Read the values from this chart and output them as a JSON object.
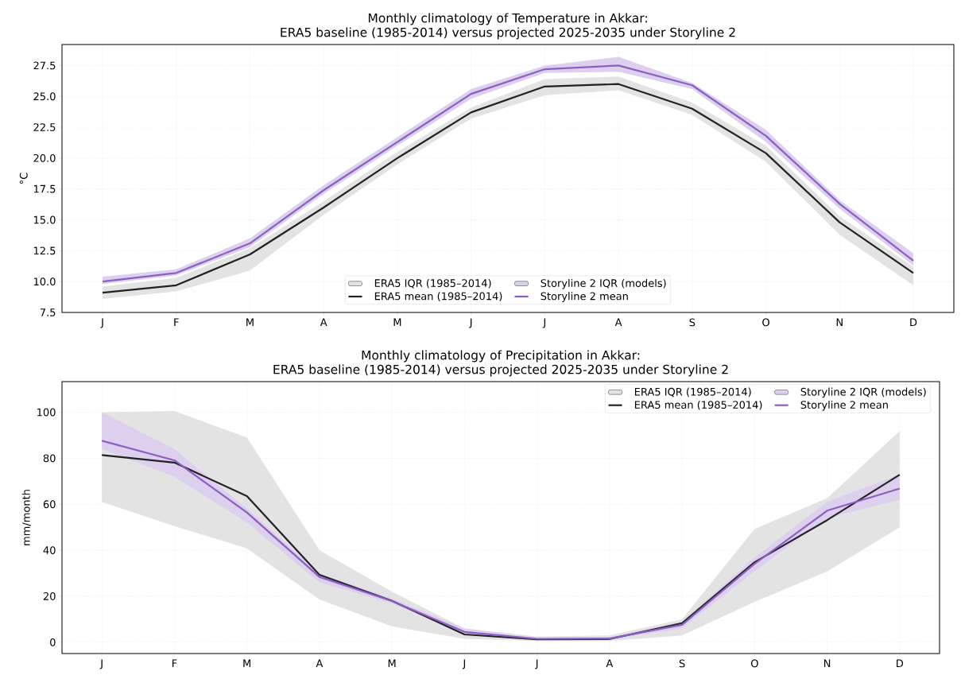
{
  "chart_data": [
    {
      "type": "line",
      "title": "Monthly climatology of Temperature in Akkar:",
      "subtitle": "ERA5 baseline (1985-2014) versus projected 2025-2035 under Storyline 2",
      "ylabel": "°C",
      "categories": [
        "J",
        "F",
        "M",
        "A",
        "M",
        "J",
        "J",
        "A",
        "S",
        "O",
        "N",
        "D"
      ],
      "ylim": [
        7.5,
        29.2
      ],
      "yticks": [
        {
          "value": 7.5,
          "label": "7.5"
        },
        {
          "value": 10,
          "label": "10.0"
        },
        {
          "value": 12.5,
          "label": "12.5"
        },
        {
          "value": 15,
          "label": "15.0"
        },
        {
          "value": 17.5,
          "label": "17.5"
        },
        {
          "value": 20,
          "label": "20.0"
        },
        {
          "value": 22.5,
          "label": "22.5"
        },
        {
          "value": 25,
          "label": "25.0"
        },
        {
          "value": 27.5,
          "label": "27.5"
        }
      ],
      "grid": true,
      "legend": "bottom",
      "series": [
        {
          "name": "ERA5 IQR (1985–2014)",
          "type": "area",
          "color": "#e3e3e3",
          "values": [
            null,
            null,
            null,
            null,
            null,
            null,
            null,
            null,
            null,
            null,
            null,
            null
          ],
          "lower": [
            8.6,
            9.2,
            10.9,
            15.4,
            19.5,
            23.2,
            25.1,
            25.5,
            23.5,
            19.7,
            13.8,
            9.7
          ],
          "upper": [
            9.6,
            10.3,
            12.7,
            16.5,
            20.5,
            24.1,
            26.4,
            26.6,
            24.5,
            21.0,
            15.3,
            11.2
          ]
        },
        {
          "name": "ERA5 mean (1985–2014)",
          "type": "line",
          "color": "#222222",
          "values": [
            9.1,
            9.7,
            12.2,
            16.0,
            20.0,
            23.7,
            25.8,
            26.0,
            24.0,
            20.4,
            14.8,
            10.7
          ]
        },
        {
          "name": "Storyline 2 IQR (models)",
          "type": "area",
          "color": "#ddd0ee",
          "values": [
            null,
            null,
            null,
            null,
            null,
            null,
            null,
            null,
            null,
            null,
            null,
            null
          ],
          "lower": [
            9.8,
            10.5,
            12.8,
            17.1,
            21.0,
            24.8,
            26.9,
            27.0,
            25.6,
            21.3,
            15.9,
            11.3
          ],
          "upper": [
            10.4,
            11.0,
            13.5,
            17.8,
            21.7,
            25.6,
            27.5,
            28.2,
            26.1,
            22.3,
            16.6,
            12.3
          ]
        },
        {
          "name": "Storyline 2 mean",
          "type": "line",
          "color": "#8c5fc0",
          "values": [
            10.0,
            10.7,
            13.1,
            17.4,
            21.3,
            25.2,
            27.2,
            27.5,
            25.9,
            21.8,
            16.3,
            11.7
          ]
        }
      ]
    },
    {
      "type": "line",
      "title": "Monthly climatology of Precipitation in Akkar:",
      "subtitle": "ERA5 baseline (1985-2014) versus projected 2025-2035 under Storyline 2",
      "ylabel": "mm/month",
      "categories": [
        "J",
        "F",
        "M",
        "A",
        "M",
        "J",
        "J",
        "A",
        "S",
        "O",
        "N",
        "D"
      ],
      "ylim": [
        -4.9,
        113.3
      ],
      "yticks": [
        0,
        20,
        40,
        60,
        80,
        100
      ],
      "grid": true,
      "legend": "top right",
      "series": [
        {
          "name": "ERA5 IQR (1985–2014)",
          "type": "area",
          "color": "#e3e3e3",
          "values": [
            null,
            null,
            null,
            null,
            null,
            null,
            null,
            null,
            null,
            null,
            null,
            null
          ],
          "lower": [
            61,
            50.5,
            40.8,
            18.6,
            6.9,
            1.5,
            0.5,
            0.5,
            3,
            17.6,
            30.8,
            50
          ],
          "upper": [
            100,
            100.5,
            89,
            40,
            22,
            6,
            2.5,
            3,
            10,
            49.3,
            62.6,
            91.8
          ]
        },
        {
          "name": "ERA5 mean (1985–2014)",
          "type": "line",
          "color": "#222222",
          "values": [
            81.4,
            78.1,
            63.5,
            29.3,
            18.0,
            3.4,
            1.3,
            1.4,
            8.3,
            34.8,
            53.1,
            72.8
          ]
        },
        {
          "name": "Storyline 2 IQR (models)",
          "type": "area",
          "color": "#ddd0ee",
          "values": [
            null,
            null,
            null,
            null,
            null,
            null,
            null,
            null,
            null,
            null,
            null,
            null
          ],
          "lower": [
            84,
            72,
            52,
            26,
            17,
            3.5,
            1.2,
            1.2,
            6,
            31,
            54,
            62
          ],
          "upper": [
            100,
            84,
            58,
            30,
            19,
            6,
            2,
            2.2,
            9,
            37,
            61,
            73
          ]
        },
        {
          "name": "Storyline 2 mean",
          "type": "line",
          "color": "#8c5fc0",
          "values": [
            87.6,
            79.1,
            56.4,
            28.4,
            17.9,
            4.5,
            1.5,
            1.6,
            7.6,
            34.1,
            57.2,
            66.8
          ]
        }
      ]
    }
  ]
}
